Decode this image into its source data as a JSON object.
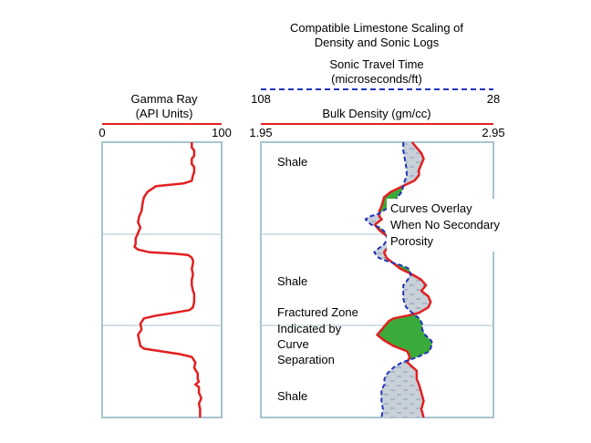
{
  "colors": {
    "curve_red": "#e02020",
    "curve_blue": "#2233bb",
    "track_border": "#a8c4d0",
    "shade_grey": "#c8d0d8",
    "shade_dash": "#8aa0b8",
    "fracture_fill": "#3aaa3a"
  },
  "chart_data": [
    {
      "type": "line",
      "panel": "gamma",
      "title": "",
      "header": {
        "line1": "Gamma Ray",
        "line2": "(API Units)"
      },
      "scale": {
        "min": 0,
        "max": 100,
        "min_label": "0",
        "max_label": "100"
      },
      "ylim": [
        0,
        100
      ],
      "series": [
        {
          "name": "Gamma Ray",
          "color": "#e02020",
          "points": [
            [
              75,
              0
            ],
            [
              75,
              2
            ],
            [
              77,
              3
            ],
            [
              77,
              5
            ],
            [
              75,
              6
            ],
            [
              75,
              8
            ],
            [
              77,
              9
            ],
            [
              77,
              11
            ],
            [
              76,
              12
            ],
            [
              75,
              14
            ],
            [
              68,
              15
            ],
            [
              45,
              16
            ],
            [
              38,
              18
            ],
            [
              35,
              20
            ],
            [
              34,
              22
            ],
            [
              33,
              25
            ],
            [
              31,
              27
            ],
            [
              30,
              29
            ],
            [
              32,
              31
            ],
            [
              30,
              33
            ],
            [
              28,
              35
            ],
            [
              28,
              37
            ],
            [
              27,
              38
            ],
            [
              30,
              39
            ],
            [
              40,
              40
            ],
            [
              60,
              40.5
            ],
            [
              72,
              41
            ],
            [
              75,
              42
            ],
            [
              76,
              43
            ],
            [
              76,
              44
            ],
            [
              75,
              46
            ],
            [
              76,
              48
            ],
            [
              75,
              50
            ],
            [
              75,
              52
            ],
            [
              76,
              54
            ],
            [
              77,
              55
            ],
            [
              77,
              58
            ],
            [
              76,
              60
            ],
            [
              73,
              61
            ],
            [
              60,
              62
            ],
            [
              45,
              63
            ],
            [
              35,
              64
            ],
            [
              32,
              66
            ],
            [
              33,
              68
            ],
            [
              30,
              70
            ],
            [
              31,
              72
            ],
            [
              32,
              74
            ],
            [
              35,
              75
            ],
            [
              50,
              76
            ],
            [
              65,
              77
            ],
            [
              75,
              78
            ],
            [
              78,
              80
            ],
            [
              77,
              82
            ],
            [
              80,
              84
            ],
            [
              80,
              86
            ],
            [
              81,
              87
            ],
            [
              78,
              88
            ],
            [
              81,
              89
            ],
            [
              81,
              91
            ],
            [
              83,
              93
            ],
            [
              81,
              95
            ],
            [
              82,
              97
            ],
            [
              82,
              100
            ]
          ]
        }
      ]
    },
    {
      "type": "line",
      "panel": "density-sonic",
      "title": "",
      "titles": {
        "line1": "Compatible Limestone Scaling of",
        "line2": "Density and Sonic Logs"
      },
      "sonic_header": {
        "line1": "Sonic Travel Time",
        "line2": "(microseconds/ft)"
      },
      "sonic_scale": {
        "left_label": "108",
        "right_label": "28",
        "left": 108,
        "right": 28
      },
      "density_header": "Bulk Density (gm/cc)",
      "density_scale": {
        "left_label": "1.95",
        "right_label": "2.95",
        "left": 1.95,
        "right": 2.95
      },
      "ylim": [
        0,
        100
      ],
      "series": [
        {
          "name": "Bulk Density",
          "color": "#e02020",
          "x_units": "gm/cc",
          "points": [
            [
              2.6,
              0
            ],
            [
              2.62,
              2
            ],
            [
              2.64,
              4
            ],
            [
              2.65,
              6
            ],
            [
              2.64,
              8
            ],
            [
              2.63,
              10
            ],
            [
              2.63,
              12
            ],
            [
              2.61,
              14
            ],
            [
              2.56,
              16
            ],
            [
              2.51,
              18
            ],
            [
              2.48,
              20
            ],
            [
              2.47,
              23
            ],
            [
              2.46,
              25
            ],
            [
              2.46,
              27
            ],
            [
              2.47,
              28
            ],
            [
              2.44,
              30
            ],
            [
              2.46,
              32
            ],
            [
              2.49,
              34
            ],
            [
              2.51,
              36
            ],
            [
              2.5,
              38
            ],
            [
              2.48,
              40
            ],
            [
              2.49,
              42
            ],
            [
              2.52,
              44
            ],
            [
              2.55,
              46
            ],
            [
              2.6,
              48
            ],
            [
              2.64,
              50
            ],
            [
              2.66,
              52
            ],
            [
              2.64,
              54
            ],
            [
              2.67,
              56
            ],
            [
              2.68,
              58
            ],
            [
              2.67,
              60
            ],
            [
              2.63,
              62
            ],
            [
              2.58,
              63
            ],
            [
              2.52,
              64
            ],
            [
              2.5,
              65
            ],
            [
              2.49,
              66
            ],
            [
              2.47,
              68
            ],
            [
              2.45,
              70
            ],
            [
              2.48,
              72
            ],
            [
              2.52,
              74
            ],
            [
              2.58,
              76
            ],
            [
              2.59,
              78
            ],
            [
              2.58,
              80
            ],
            [
              2.62,
              83
            ],
            [
              2.62,
              86
            ],
            [
              2.63,
              88
            ],
            [
              2.64,
              91
            ],
            [
              2.65,
              94
            ],
            [
              2.64,
              97
            ],
            [
              2.65,
              100
            ]
          ]
        },
        {
          "name": "Sonic Travel Time",
          "color": "#2233bb",
          "x_units": "microseconds/ft",
          "points": [
            [
              59.0,
              0
            ],
            [
              59.0,
              3
            ],
            [
              58.5,
              6
            ],
            [
              58.0,
              9
            ],
            [
              57.8,
              12
            ],
            [
              58.5,
              14
            ],
            [
              59.0,
              16
            ],
            [
              59.5,
              18
            ],
            [
              61.0,
              20
            ],
            [
              62.5,
              22
            ],
            [
              64.5,
              24
            ],
            [
              67.5,
              26
            ],
            [
              70.5,
              27
            ],
            [
              72.0,
              28
            ],
            [
              70.0,
              30
            ],
            [
              67.0,
              31
            ],
            [
              65.0,
              33
            ],
            [
              64.5,
              35
            ],
            [
              65.5,
              37
            ],
            [
              68.0,
              39
            ],
            [
              69.0,
              40
            ],
            [
              67.5,
              42
            ],
            [
              65.0,
              43
            ],
            [
              62.0,
              44
            ],
            [
              59.0,
              45
            ],
            [
              57.0,
              46
            ],
            [
              56.5,
              48
            ],
            [
              57.5,
              50
            ],
            [
              59.0,
              52
            ],
            [
              59.0,
              54
            ],
            [
              59.0,
              57
            ],
            [
              58.0,
              60
            ],
            [
              56.0,
              62
            ],
            [
              53.5,
              64
            ],
            [
              52.5,
              66
            ],
            [
              52.5,
              68
            ],
            [
              51.5,
              70
            ],
            [
              49.5,
              72
            ],
            [
              49.0,
              73
            ],
            [
              50.0,
              76
            ],
            [
              54.0,
              78
            ],
            [
              59.5,
              80
            ],
            [
              62.5,
              82
            ],
            [
              64.5,
              84
            ],
            [
              65.5,
              86
            ],
            [
              65.5,
              88
            ],
            [
              66.5,
              90
            ],
            [
              66.5,
              94
            ],
            [
              66.0,
              97
            ],
            [
              66.5,
              100
            ]
          ]
        }
      ],
      "annotations": {
        "shale_top": "Shale",
        "overlay": [
          "Curves Overlay",
          "When No Secondary",
          "Porosity"
        ],
        "shale_mid": "Shale",
        "fractured": [
          "Fractured Zone",
          "Indicated by",
          "Curve",
          "Separation"
        ],
        "shale_bottom": "Shale"
      }
    }
  ]
}
